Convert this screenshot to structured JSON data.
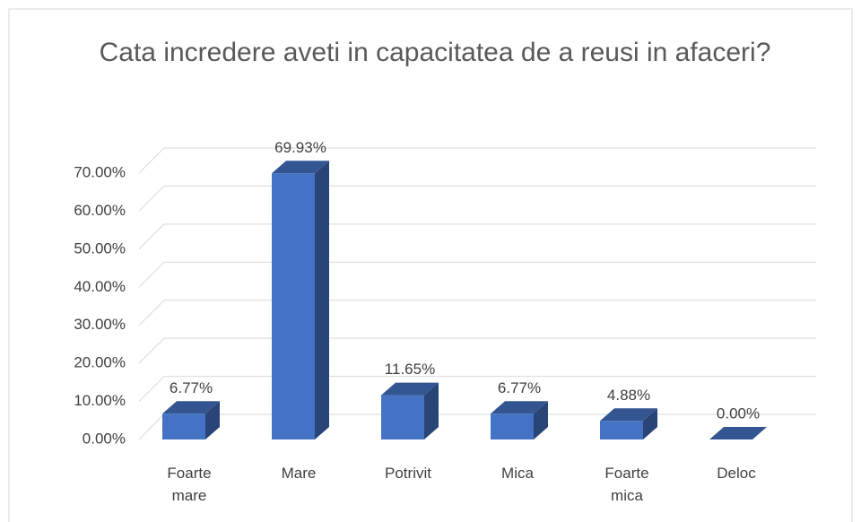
{
  "chart_data": {
    "type": "bar3d",
    "title": "Cata incredere aveti in capacitatea de a reusi in afaceri?",
    "categories": [
      "Foarte mare",
      "Mare",
      "Potrivit",
      "Mica",
      "Foarte mica",
      "Deloc"
    ],
    "values": [
      6.77,
      69.93,
      11.65,
      6.77,
      4.88,
      0
    ],
    "value_labels": [
      "6.77%",
      "69.93%",
      "11.65%",
      "6.77%",
      "4.88%",
      "0.00%"
    ],
    "color": "#4472c4",
    "ylim": [
      0,
      70
    ],
    "yticks": [
      {
        "value": 0,
        "label": "0.00%"
      },
      {
        "value": 10,
        "label": "10.00%"
      },
      {
        "value": 20,
        "label": "20.00%"
      },
      {
        "value": 30,
        "label": "30.00%"
      },
      {
        "value": 40,
        "label": "40.00%"
      },
      {
        "value": 50,
        "label": "50.00%"
      },
      {
        "value": 60,
        "label": "60.00%"
      },
      {
        "value": 70,
        "label": "70.00%"
      }
    ],
    "grid": true
  }
}
